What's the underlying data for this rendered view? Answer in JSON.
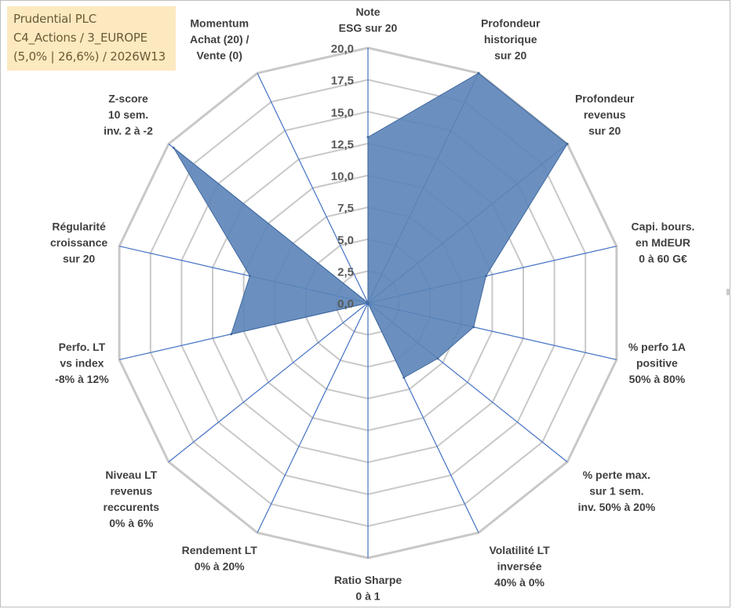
{
  "title_box": {
    "line1": "Prudential PLC",
    "line2": "C4_Actions / 3_EUROPE",
    "line3": "(5,0% | 26,6%) / 2026W13",
    "background": "#fde9c0"
  },
  "colors": {
    "grid": "#c8c8c8",
    "axis": "#4472c4",
    "fill": "#5b84b8",
    "stroke": "#41699e"
  },
  "chart_data": {
    "type": "radar",
    "title": "",
    "rmin": 0,
    "rmax": 20,
    "ticks": [
      "0,0",
      "2,5",
      "5,0",
      "7,5",
      "10,0",
      "12,5",
      "15,0",
      "17,5",
      "20,0"
    ],
    "tick_values": [
      0,
      2.5,
      5,
      7.5,
      10,
      12.5,
      15,
      17.5,
      20
    ],
    "axes": [
      {
        "label": [
          "Note",
          "ESG sur 20"
        ],
        "value": 13.0
      },
      {
        "label": [
          "Profondeur",
          "historique",
          "sur 20"
        ],
        "value": 20.0
      },
      {
        "label": [
          "Profondeur",
          "revenus",
          "sur 20"
        ],
        "value": 20.0
      },
      {
        "label": [
          "Capi. bours.",
          "en MdEUR",
          "0 à 60 G€"
        ],
        "value": 9.5
      },
      {
        "label": [
          "% perfo 1A",
          "positive",
          "50% à 80%"
        ],
        "value": 8.5
      },
      {
        "label": [
          "% perte max.",
          "sur 1 sem.",
          "inv. 50% à 20%"
        ],
        "value": 7.0
      },
      {
        "label": [
          "Volatilité LT",
          "inversée",
          "40% à 0%"
        ],
        "value": 6.5
      },
      {
        "label": [
          "Ratio Sharpe",
          "0 à 1"
        ],
        "value": 0.0
      },
      {
        "label": [
          "Rendement LT",
          "0% à 20%"
        ],
        "value": 0.0
      },
      {
        "label": [
          "Niveau LT",
          "revenus",
          "reccurents",
          "0% à 6%"
        ],
        "value": 0.0
      },
      {
        "label": [
          "Perfo. LT",
          "vs index",
          "-8% à 12%"
        ],
        "value": 11.0
      },
      {
        "label": [
          "Régularité",
          "croissance",
          "sur 20"
        ],
        "value": 9.5
      },
      {
        "label": [
          "Z-score",
          "10 sem.",
          "inv. 2 à -2"
        ],
        "value": 19.5
      },
      {
        "label": [
          "Momentum",
          "Achat (20) /",
          "Vente (0)"
        ],
        "value": 0.0
      }
    ]
  }
}
